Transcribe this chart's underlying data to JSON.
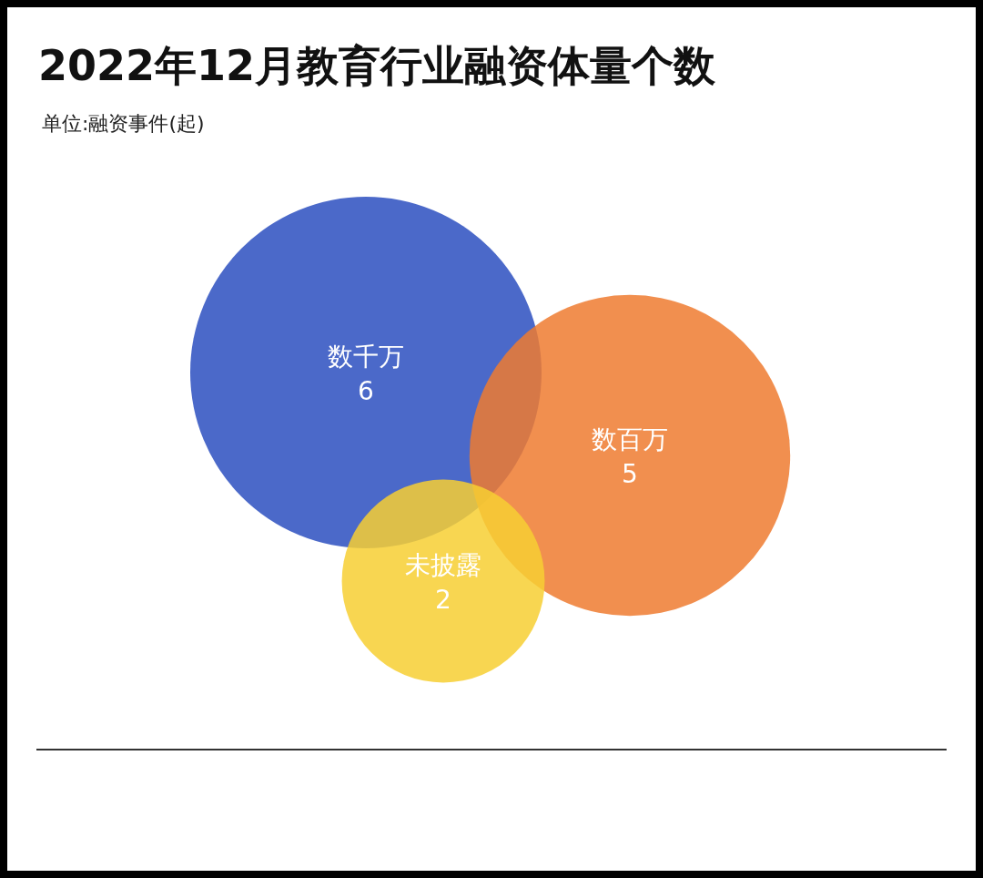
{
  "chart_data": {
    "type": "other",
    "title": "2022年12月教育行业融资体量个数",
    "subtitle": "单位:融资事件(起)",
    "categories": [
      "数千万",
      "数百万",
      "未披露"
    ],
    "values": [
      6,
      5,
      2
    ],
    "colors": [
      "#2c4fbf",
      "#ee7b30",
      "#f7cf33"
    ],
    "data_labels": true
  }
}
